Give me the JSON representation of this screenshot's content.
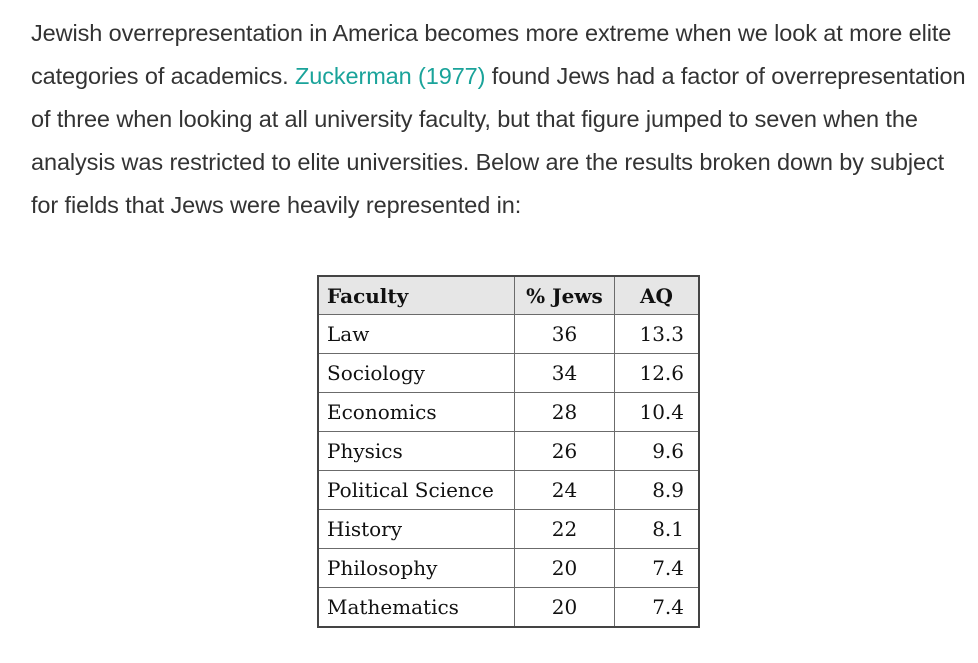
{
  "article": {
    "text_before_link": "Jewish overrepresentation in America becomes more extreme when we look at more elite categories of academics. ",
    "link_text": "Zuckerman (1977)",
    "text_after_link": " found Jews had a factor of overrepresentation of three when looking at all university faculty, but that figure jumped to seven when the analysis was restricted to elite universities. Below are the results broken down by subject for fields that Jews were heavily represented in:"
  },
  "table": {
    "headers": {
      "faculty": "Faculty",
      "jews": "% Jews",
      "aq": "AQ"
    },
    "rows": [
      {
        "faculty": "Law",
        "jews": "36",
        "aq": "13.3"
      },
      {
        "faculty": "Sociology",
        "jews": "34",
        "aq": "12.6"
      },
      {
        "faculty": "Economics",
        "jews": "28",
        "aq": "10.4"
      },
      {
        "faculty": "Physics",
        "jews": "26",
        "aq": "9.6"
      },
      {
        "faculty": "Political Science",
        "jews": "24",
        "aq": "8.9"
      },
      {
        "faculty": "History",
        "jews": "22",
        "aq": "8.1"
      },
      {
        "faculty": "Philosophy",
        "jews": "20",
        "aq": "7.4"
      },
      {
        "faculty": "Mathematics",
        "jews": "20",
        "aq": "7.4"
      }
    ]
  },
  "colors": {
    "body_text": "#333333",
    "link": "#1aa39a",
    "header_bg": "#e6e6e6"
  }
}
